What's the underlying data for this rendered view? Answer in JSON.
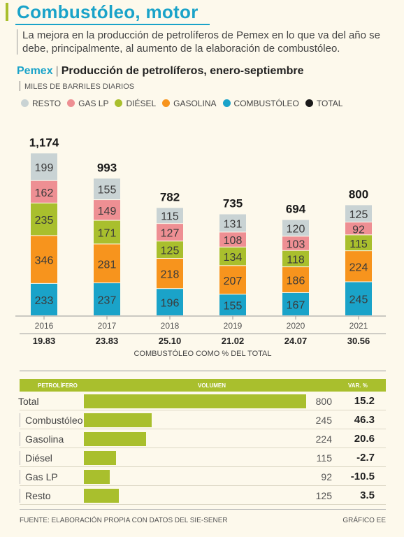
{
  "headline": "Combustóleo, motor",
  "intro": "La mejora en la producción de petrolíferos de Pemex en lo que va del año se debe, principalmente, al aumento de la elaboración de combustóleo.",
  "chart_title": {
    "brand": "Pemex",
    "separator": "|",
    "text": "Producción de petrolíferos, enero-septiembre"
  },
  "subtitle": "MILES DE BARRILES DIARIOS",
  "legend": [
    {
      "label": "RESTO",
      "color": "#c9d3d4"
    },
    {
      "label": "GAS LP",
      "color": "#ee8f93"
    },
    {
      "label": "DIÉSEL",
      "color": "#a9bf2d"
    },
    {
      "label": "GASOLINA",
      "color": "#f7941d"
    },
    {
      "label": "COMBUSTÓLEO",
      "color": "#1aa3c9"
    },
    {
      "label": "TOTAL",
      "color": "#1a1a1a"
    }
  ],
  "chart_data": {
    "type": "bar",
    "stacked": true,
    "categories": [
      "2016",
      "2017",
      "2018",
      "2019",
      "2020",
      "2021"
    ],
    "series": [
      {
        "name": "COMBUSTÓLEO",
        "color": "#1aa3c9",
        "values": [
          233,
          237,
          196,
          155,
          167,
          245
        ]
      },
      {
        "name": "GASOLINA",
        "color": "#f7941d",
        "values": [
          346,
          281,
          218,
          207,
          186,
          224
        ]
      },
      {
        "name": "DIÉSEL",
        "color": "#a9bf2d",
        "values": [
          235,
          171,
          125,
          134,
          118,
          115
        ]
      },
      {
        "name": "GAS LP",
        "color": "#ee8f93",
        "values": [
          162,
          149,
          127,
          108,
          103,
          92
        ]
      },
      {
        "name": "RESTO",
        "color": "#c9d3d4",
        "values": [
          199,
          155,
          115,
          131,
          120,
          125
        ]
      }
    ],
    "totals": [
      "1,174",
      "993",
      "782",
      "735",
      "694",
      "800"
    ],
    "combustoleo_pct": [
      "19.83",
      "23.83",
      "25.10",
      "21.02",
      "24.07",
      "30.56"
    ],
    "combustoleo_pct_label": "COMBUSTÓLEO COMO % DEL TOTAL",
    "ylim": [
      0,
      1250
    ]
  },
  "table": {
    "headers": {
      "product": "PETROLÍFERO",
      "volume": "VOLUMEN",
      "var": "VAR. %"
    },
    "max_volume": 800,
    "rows": [
      {
        "name": "Total",
        "volume": 800,
        "var": "15.2",
        "indent": false
      },
      {
        "name": "Combustóleo",
        "volume": 245,
        "var": "46.3",
        "indent": true
      },
      {
        "name": "Gasolina",
        "volume": 224,
        "var": "20.6",
        "indent": true
      },
      {
        "name": "Diésel",
        "volume": 115,
        "var": "-2.7",
        "indent": true
      },
      {
        "name": "Gas LP",
        "volume": 92,
        "var": "-10.5",
        "indent": true
      },
      {
        "name": "Resto",
        "volume": 125,
        "var": "3.5",
        "indent": true
      }
    ]
  },
  "footer": {
    "source": "FUENTE: ELABORACIÓN PROPIA CON DATOS DEL SIE-SENER",
    "credit": "GRÁFICO EE"
  }
}
